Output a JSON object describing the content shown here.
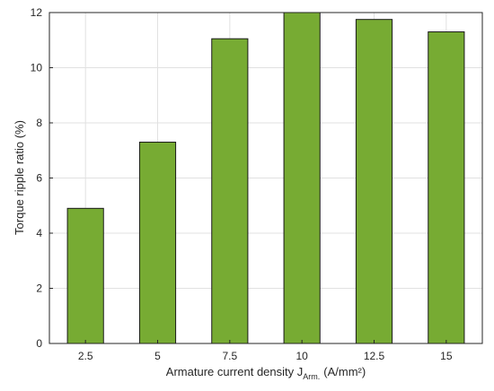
{
  "chart_data": {
    "type": "bar",
    "categories": [
      "2.5",
      "5",
      "7.5",
      "10",
      "12.5",
      "15"
    ],
    "values": [
      4.9,
      7.3,
      11.05,
      12.0,
      11.75,
      11.3
    ],
    "xlabel": {
      "main": "Armature current density J",
      "subscript": "Arm.",
      "unit": "(A/mm²)"
    },
    "ylabel": "Torque ripple ratio (%)",
    "ylim": [
      0,
      12
    ],
    "yticks": [
      "0",
      "2",
      "4",
      "6",
      "8",
      "10",
      "12"
    ],
    "grid": true,
    "bar_color": "#77ab33",
    "bar_edge_color": "#1a1a1a"
  }
}
